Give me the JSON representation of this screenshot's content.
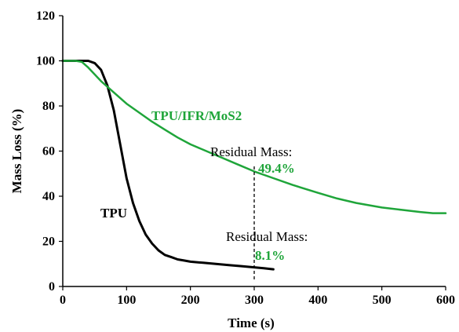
{
  "chart_data": {
    "type": "line",
    "xlabel": "Time (s)",
    "ylabel": "Mass Loss (%)",
    "xlim": [
      0,
      600
    ],
    "ylim": [
      0,
      120
    ],
    "x_ticks": [
      0,
      100,
      200,
      300,
      400,
      500,
      600
    ],
    "y_ticks": [
      0,
      20,
      40,
      60,
      80,
      100,
      120
    ],
    "grid": false,
    "series": [
      {
        "name": "TPU",
        "color": "#000000",
        "x": [
          0,
          20,
          40,
          50,
          60,
          70,
          80,
          90,
          100,
          110,
          120,
          130,
          140,
          150,
          160,
          170,
          180,
          190,
          200,
          220,
          240,
          260,
          280,
          300,
          315,
          330
        ],
        "y": [
          100,
          100,
          100,
          99,
          96,
          89,
          78,
          63,
          48,
          37,
          29,
          23,
          19,
          16,
          14,
          13,
          12,
          11.5,
          11,
          10.5,
          10,
          9.5,
          9,
          8.5,
          8.1,
          7.6
        ]
      },
      {
        "name": "TPU/IFR/MoS2",
        "color": "#1fa53a",
        "x": [
          0,
          20,
          30,
          40,
          60,
          80,
          100,
          120,
          140,
          160,
          180,
          200,
          225,
          250,
          275,
          300,
          330,
          360,
          400,
          430,
          460,
          500,
          530,
          560,
          580,
          600
        ],
        "y": [
          100,
          100,
          99.5,
          97,
          91,
          86,
          81,
          77,
          73,
          69.5,
          66,
          63,
          60,
          57,
          54,
          51,
          48,
          45,
          41.5,
          39,
          37,
          35,
          34,
          33,
          32.5,
          32.5
        ]
      }
    ],
    "annotations": [
      {
        "label": "TPU/IFR/MoS2",
        "color": "#1fa53a"
      },
      {
        "label": "TPU",
        "color": "#000000"
      },
      {
        "label": "Residual Mass:",
        "value": "49.4%",
        "value_color": "#1fa53a"
      },
      {
        "label": "Residual Mass:",
        "value": "8.1%",
        "value_color": "#1fa53a"
      }
    ],
    "marker_line_x": 300
  }
}
